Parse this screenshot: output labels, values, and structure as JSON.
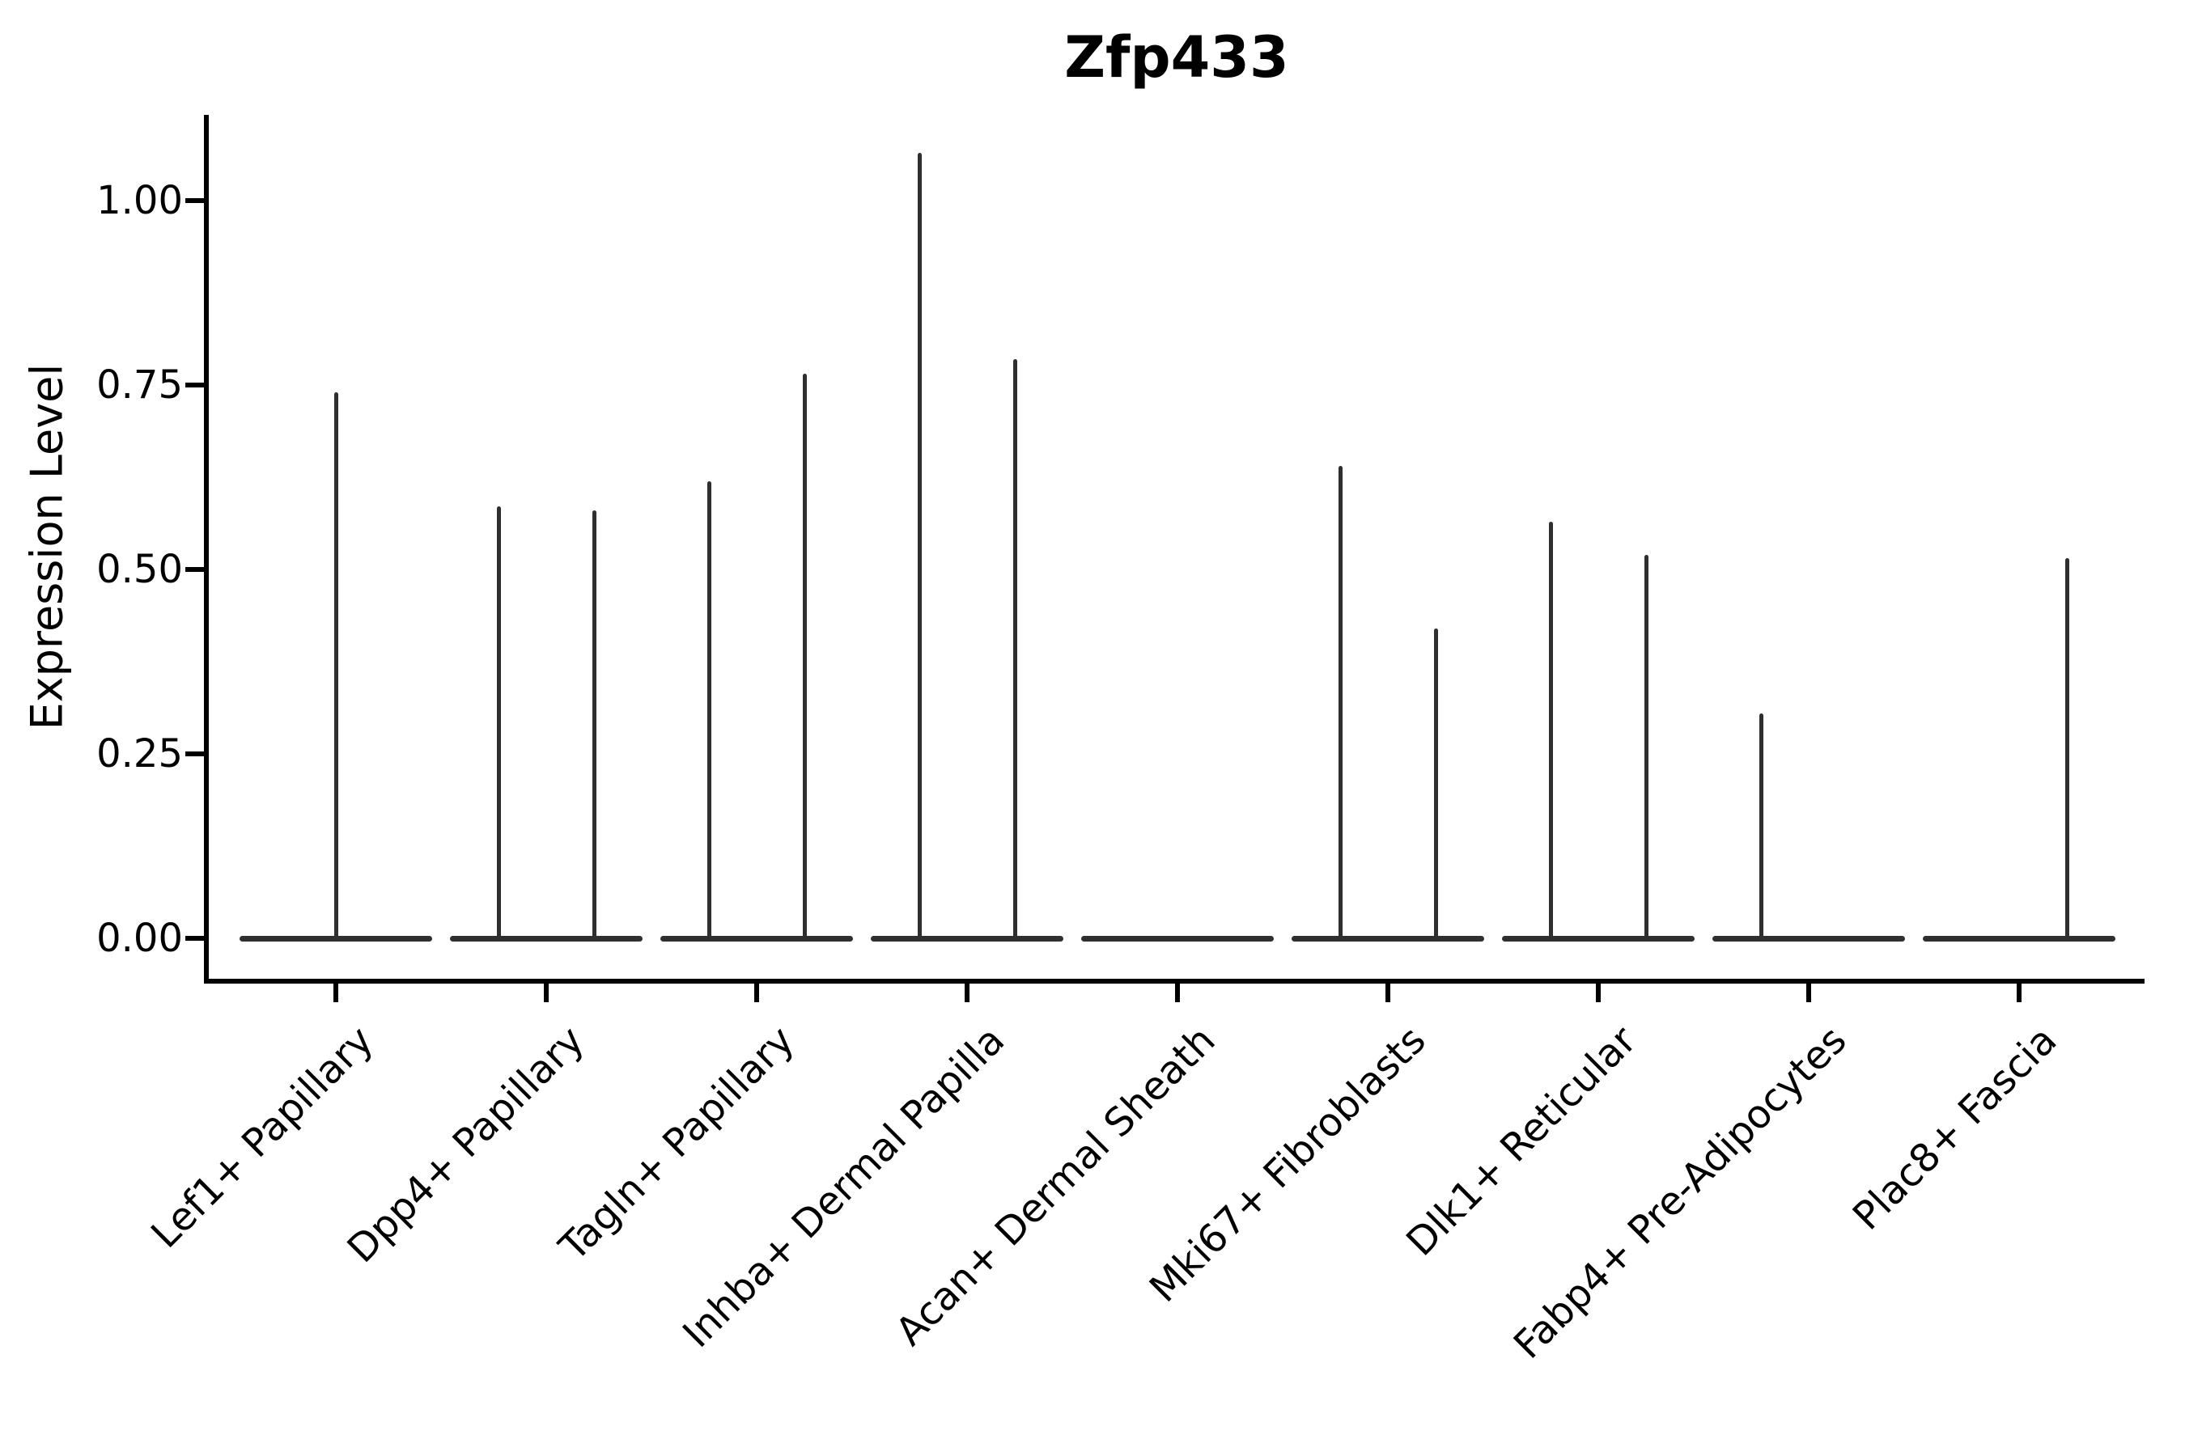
{
  "chart_data": {
    "type": "violin",
    "title": "Zfp433",
    "ylabel": "Expression Level",
    "xlabel": "",
    "ylim": [
      -0.05,
      1.12
    ],
    "yticks": [
      0,
      0.25,
      0.5,
      0.75,
      1.0
    ],
    "ytick_labels": [
      "0.00",
      "0.25",
      "0.50",
      "0.75",
      "1.00"
    ],
    "grid": false,
    "legend": false,
    "categories": [
      "Lef1+ Papillary",
      "Dpp4+ Papillary",
      "Tagln+ Papillary",
      "Inhba+ Dermal Papilla",
      "Acan+ Dermal Sheath",
      "Mki67+ Fibroblasts",
      "Dlk1+ Reticular",
      "Fabp4+ Pre-Adipocytes",
      "Plac8+ Fascia"
    ],
    "violins": [
      {
        "category": "Lef1+ Papillary",
        "spikes": [
          {
            "position": "center",
            "max": 0.74
          }
        ]
      },
      {
        "category": "Dpp4+ Papillary",
        "spikes": [
          {
            "position": "left",
            "max": 0.585
          },
          {
            "position": "right",
            "max": 0.58
          }
        ]
      },
      {
        "category": "Tagln+ Papillary",
        "spikes": [
          {
            "position": "left",
            "max": 0.62
          },
          {
            "position": "right",
            "max": 0.765
          }
        ]
      },
      {
        "category": "Inhba+ Dermal Papilla",
        "spikes": [
          {
            "position": "left",
            "max": 1.065
          },
          {
            "position": "right",
            "max": 0.785
          }
        ]
      },
      {
        "category": "Acan+ Dermal Sheath",
        "spikes": []
      },
      {
        "category": "Mki67+ Fibroblasts",
        "spikes": [
          {
            "position": "left",
            "max": 0.64
          },
          {
            "position": "right",
            "max": 0.42
          }
        ]
      },
      {
        "category": "Dlk1+ Reticular",
        "spikes": [
          {
            "position": "left",
            "max": 0.565
          },
          {
            "position": "right",
            "max": 0.52
          }
        ]
      },
      {
        "category": "Fabp4+ Pre-Adipocytes",
        "spikes": [
          {
            "position": "left",
            "max": 0.305
          }
        ]
      },
      {
        "category": "Plac8+ Fascia",
        "spikes": [
          {
            "position": "right",
            "max": 0.515
          }
        ]
      }
    ],
    "colors": {
      "violin_line": "#2f2f2f",
      "axis": "#000000",
      "background": "#ffffff"
    }
  }
}
